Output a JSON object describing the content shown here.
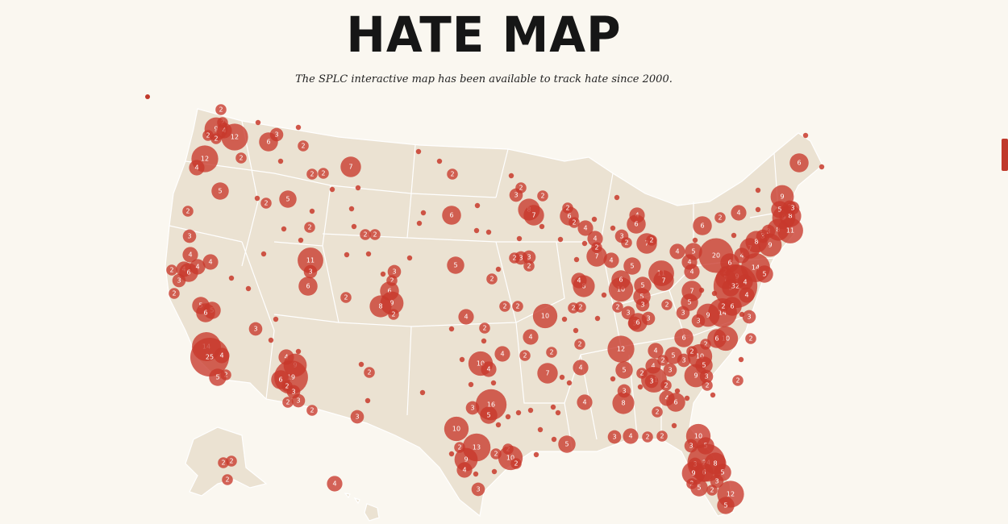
{
  "header": {
    "title": "HATE MAP",
    "subtitle": "The SPLC interactive map has been available to track hate since 2000."
  },
  "map": {
    "color": "#c8392b",
    "markers": [
      2,
      2,
      9,
      4,
      2,
      2,
      12,
      2,
      12,
      4,
      5,
      6,
      3,
      2,
      7,
      2,
      2,
      5,
      2,
      2,
      2,
      3,
      4,
      4,
      3,
      6,
      2,
      4,
      4,
      2,
      5,
      5,
      6,
      3,
      11,
      3,
      6,
      2,
      2,
      2,
      6,
      2,
      3,
      2,
      6,
      9,
      8,
      2,
      5,
      4,
      2,
      14,
      25,
      4,
      2,
      5,
      4,
      9,
      19,
      6,
      2,
      3,
      3,
      2,
      2,
      2,
      3,
      10,
      4,
      4,
      2,
      16,
      3,
      5,
      10,
      13,
      2,
      9,
      4,
      2,
      2,
      10,
      2,
      3,
      4,
      2,
      2,
      2,
      10,
      4,
      7,
      2,
      2,
      4,
      4,
      5,
      3,
      4,
      2,
      2,
      8,
      3,
      5,
      12,
      3,
      6,
      3,
      3,
      10,
      6,
      2,
      8,
      4,
      2,
      2,
      7,
      4,
      2,
      4,
      5,
      7,
      2,
      4,
      6,
      3,
      2,
      6,
      2,
      2,
      4,
      8,
      7,
      3,
      2,
      2,
      3,
      2,
      3,
      2,
      2,
      2,
      2,
      5,
      5,
      3,
      11,
      7,
      2,
      4,
      4,
      4,
      5,
      7,
      5,
      6,
      2,
      4,
      20,
      6,
      2,
      5,
      7,
      9,
      32,
      4,
      14,
      4,
      7,
      8,
      3,
      9,
      5,
      3,
      8,
      9,
      9,
      3,
      5,
      8,
      3,
      11,
      6,
      14,
      9,
      6,
      2,
      3,
      10,
      6,
      2,
      6,
      10,
      2,
      3,
      5,
      2,
      4,
      11,
      2,
      3,
      9,
      3,
      5,
      2,
      4,
      6,
      2,
      3,
      2,
      3,
      4,
      3,
      4,
      2,
      2,
      10,
      5,
      3,
      24,
      8,
      3,
      6,
      5,
      9,
      2,
      5,
      3,
      12,
      5,
      2
    ]
  }
}
